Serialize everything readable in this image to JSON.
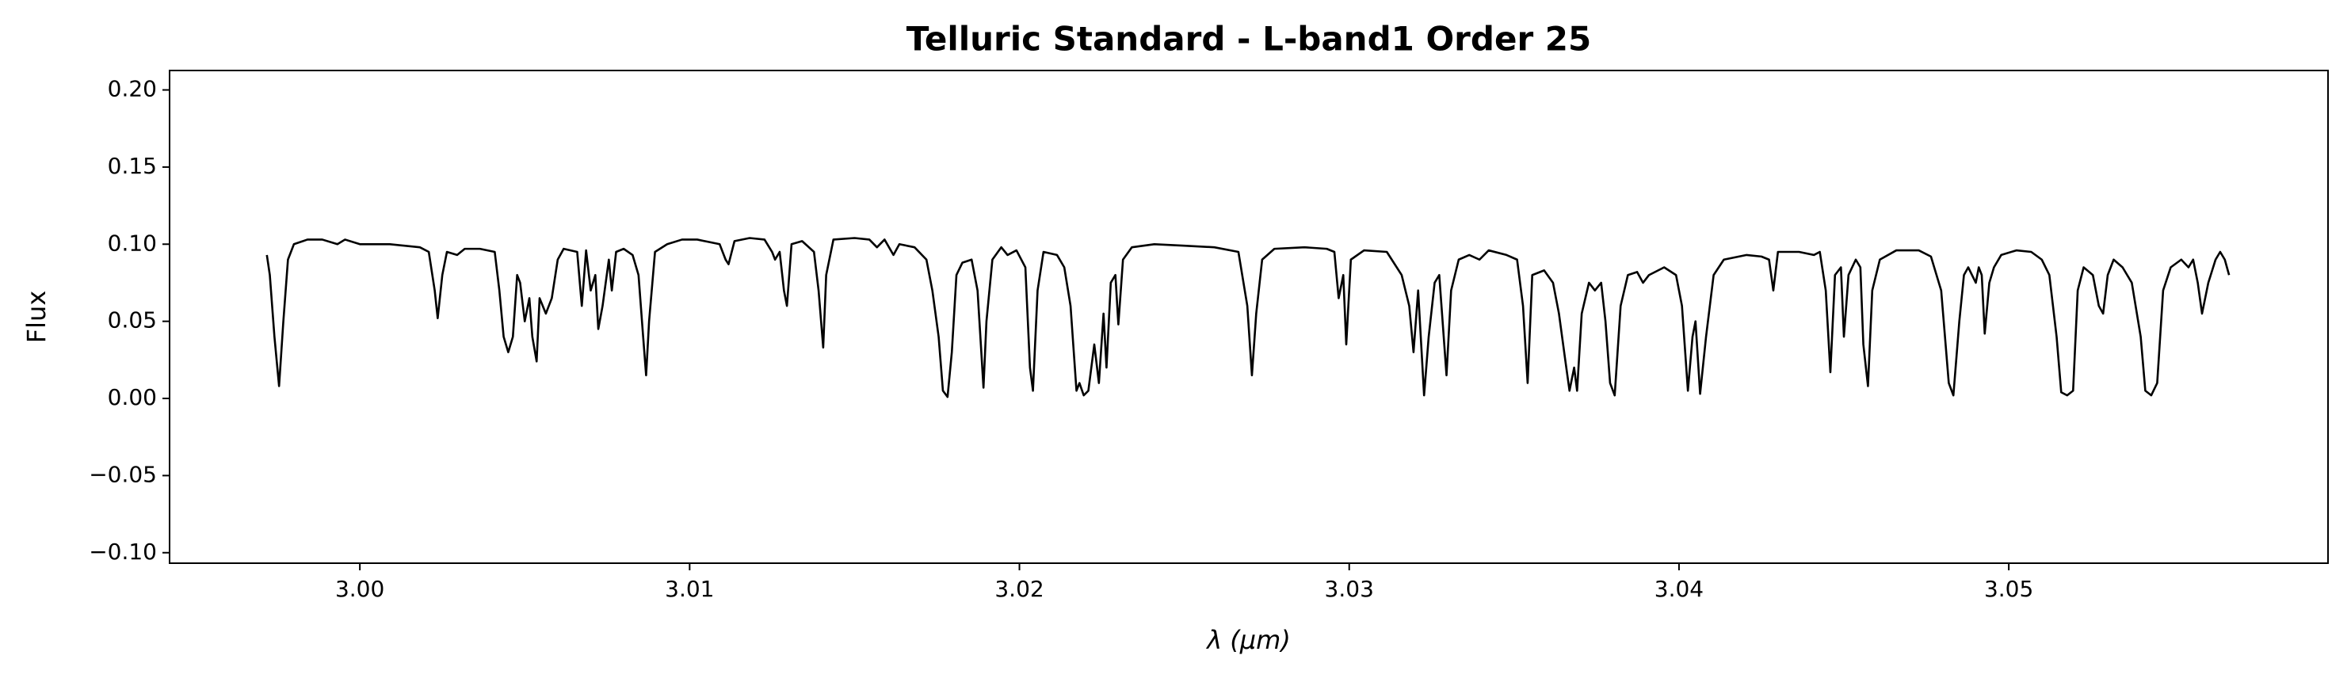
{
  "chart_data": {
    "type": "line",
    "title": "Telluric Standard - L-band1 Order 25",
    "xlabel": "λ (μm)",
    "ylabel": "Flux",
    "color": "#000000",
    "x": [
      2.99718,
      2.99727,
      2.99741,
      2.99755,
      2.99768,
      2.99782,
      2.998,
      2.99841,
      2.99886,
      2.99932,
      2.99955,
      3.0,
      3.00091,
      3.00182,
      3.00209,
      3.00227,
      3.00236,
      3.0025,
      3.00264,
      3.00295,
      3.00318,
      3.00364,
      3.00409,
      3.00423,
      3.00436,
      3.0045,
      3.00464,
      3.00477,
      3.00486,
      3.005,
      3.00514,
      3.00523,
      3.00536,
      3.00545,
      3.00564,
      3.00582,
      3.006,
      3.00618,
      3.00659,
      3.00673,
      3.00686,
      3.007,
      3.00714,
      3.00723,
      3.00736,
      3.00755,
      3.00764,
      3.00777,
      3.008,
      3.00827,
      3.00845,
      3.00859,
      3.00868,
      3.00877,
      3.00895,
      3.00932,
      3.00977,
      3.01023,
      3.01091,
      3.01109,
      3.01118,
      3.01136,
      3.01182,
      3.01227,
      3.0125,
      3.01259,
      3.01273,
      3.01286,
      3.01295,
      3.01309,
      3.01341,
      3.01377,
      3.01391,
      3.01405,
      3.01414,
      3.01436,
      3.015,
      3.01545,
      3.01568,
      3.01591,
      3.01618,
      3.01636,
      3.01682,
      3.01718,
      3.01736,
      3.01755,
      3.01768,
      3.01782,
      3.01795,
      3.01809,
      3.01827,
      3.01855,
      3.01873,
      3.01891,
      3.019,
      3.01918,
      3.01945,
      3.01964,
      3.01991,
      3.02018,
      3.02032,
      3.02041,
      3.02055,
      3.02073,
      3.02114,
      3.02136,
      3.02155,
      3.02173,
      3.02182,
      3.02195,
      3.02209,
      3.02227,
      3.02241,
      3.02255,
      3.02264,
      3.02277,
      3.02291,
      3.023,
      3.02314,
      3.02341,
      3.02409,
      3.025,
      3.02591,
      3.02664,
      3.02691,
      3.02705,
      3.02718,
      3.02736,
      3.02773,
      3.02864,
      3.02932,
      3.02955,
      3.02968,
      3.02982,
      3.02991,
      3.03005,
      3.03045,
      3.03114,
      3.03159,
      3.03182,
      3.03195,
      3.03209,
      3.03227,
      3.03241,
      3.03259,
      3.03273,
      3.03295,
      3.03309,
      3.03332,
      3.03364,
      3.03395,
      3.03423,
      3.03477,
      3.03509,
      3.03527,
      3.03541,
      3.03555,
      3.03591,
      3.03618,
      3.03636,
      3.03655,
      3.03668,
      3.03682,
      3.03691,
      3.03705,
      3.03727,
      3.03745,
      3.03764,
      3.03777,
      3.03791,
      3.03805,
      3.03823,
      3.03845,
      3.03873,
      3.03891,
      3.03909,
      3.03955,
      3.03991,
      3.04009,
      3.04027,
      3.04041,
      3.0405,
      3.04064,
      3.04082,
      3.04105,
      3.04136,
      3.04205,
      3.0425,
      3.04273,
      3.04286,
      3.043,
      3.04364,
      3.04409,
      3.04427,
      3.04445,
      3.04459,
      3.04473,
      3.04491,
      3.045,
      3.04514,
      3.04536,
      3.0455,
      3.04559,
      3.04573,
      3.04586,
      3.04609,
      3.04659,
      3.04727,
      3.04764,
      3.04795,
      3.04818,
      3.04832,
      3.0485,
      3.04864,
      3.04877,
      3.049,
      3.04909,
      3.04918,
      3.04927,
      3.04941,
      3.04955,
      3.04977,
      3.05023,
      3.05068,
      3.051,
      3.05123,
      3.05145,
      3.05159,
      3.05177,
      3.05195,
      3.05209,
      3.05227,
      3.05255,
      3.05273,
      3.05286,
      3.053,
      3.05318,
      3.05345,
      3.05373,
      3.054,
      3.05414,
      3.05432,
      3.0545,
      3.05468,
      3.05491,
      3.05523,
      3.05545,
      3.05559,
      3.05573,
      3.05586,
      3.05605,
      3.05627,
      3.05641,
      3.05655,
      3.05668
    ],
    "values": [
      0.093,
      0.08,
      0.04,
      0.008,
      0.05,
      0.09,
      0.1,
      0.103,
      0.103,
      0.1,
      0.103,
      0.1,
      0.1,
      0.098,
      0.095,
      0.07,
      0.052,
      0.08,
      0.095,
      0.093,
      0.097,
      0.097,
      0.095,
      0.07,
      0.04,
      0.03,
      0.04,
      0.08,
      0.075,
      0.05,
      0.065,
      0.04,
      0.024,
      0.065,
      0.055,
      0.065,
      0.09,
      0.097,
      0.095,
      0.06,
      0.096,
      0.07,
      0.08,
      0.045,
      0.06,
      0.09,
      0.07,
      0.095,
      0.097,
      0.093,
      0.08,
      0.04,
      0.015,
      0.05,
      0.095,
      0.1,
      0.103,
      0.103,
      0.1,
      0.09,
      0.087,
      0.102,
      0.104,
      0.103,
      0.095,
      0.09,
      0.095,
      0.07,
      0.06,
      0.1,
      0.102,
      0.095,
      0.07,
      0.033,
      0.08,
      0.103,
      0.104,
      0.103,
      0.098,
      0.103,
      0.093,
      0.1,
      0.098,
      0.09,
      0.07,
      0.04,
      0.005,
      0.001,
      0.03,
      0.08,
      0.088,
      0.09,
      0.07,
      0.007,
      0.05,
      0.09,
      0.098,
      0.093,
      0.096,
      0.085,
      0.02,
      0.005,
      0.07,
      0.095,
      0.093,
      0.085,
      0.06,
      0.005,
      0.01,
      0.002,
      0.005,
      0.035,
      0.01,
      0.055,
      0.02,
      0.075,
      0.08,
      0.048,
      0.09,
      0.098,
      0.1,
      0.099,
      0.098,
      0.095,
      0.06,
      0.015,
      0.055,
      0.09,
      0.097,
      0.098,
      0.097,
      0.095,
      0.065,
      0.08,
      0.035,
      0.09,
      0.096,
      0.095,
      0.08,
      0.06,
      0.03,
      0.07,
      0.002,
      0.04,
      0.075,
      0.08,
      0.015,
      0.07,
      0.09,
      0.093,
      0.09,
      0.096,
      0.093,
      0.09,
      0.06,
      0.01,
      0.08,
      0.083,
      0.075,
      0.055,
      0.025,
      0.005,
      0.02,
      0.005,
      0.055,
      0.075,
      0.07,
      0.075,
      0.05,
      0.01,
      0.002,
      0.06,
      0.08,
      0.082,
      0.075,
      0.08,
      0.085,
      0.08,
      0.06,
      0.005,
      0.04,
      0.05,
      0.003,
      0.04,
      0.08,
      0.09,
      0.093,
      0.092,
      0.09,
      0.07,
      0.095,
      0.095,
      0.093,
      0.095,
      0.07,
      0.017,
      0.08,
      0.085,
      0.04,
      0.08,
      0.09,
      0.085,
      0.035,
      0.008,
      0.07,
      0.09,
      0.096,
      0.096,
      0.092,
      0.07,
      0.01,
      0.002,
      0.05,
      0.08,
      0.085,
      0.075,
      0.085,
      0.08,
      0.042,
      0.075,
      0.085,
      0.093,
      0.096,
      0.095,
      0.09,
      0.08,
      0.04,
      0.004,
      0.002,
      0.005,
      0.07,
      0.085,
      0.08,
      0.06,
      0.055,
      0.08,
      0.09,
      0.085,
      0.075,
      0.04,
      0.005,
      0.002,
      0.01,
      0.07,
      0.085,
      0.09,
      0.085,
      0.09,
      0.075,
      0.055,
      0.075,
      0.09,
      0.095,
      0.09,
      0.08
    ],
    "xlim": [
      2.99423,
      3.05968
    ],
    "xticks": [
      {
        "value": 3.0,
        "label": "3.00"
      },
      3.01,
      3.02,
      3.03,
      3.04,
      3.05
    ],
    "ylim": [
      -0.1068,
      0.2126
    ],
    "yticks": [
      {
        "value": -0.1,
        "label": "−0.10"
      },
      {
        "value": -0.05,
        "label": "−0.05"
      },
      {
        "value": 0.0,
        "label": "0.00"
      },
      0.05,
      {
        "value": 0.1,
        "label": "0.10"
      },
      0.15,
      {
        "value": 0.2,
        "label": "0.20"
      }
    ]
  }
}
